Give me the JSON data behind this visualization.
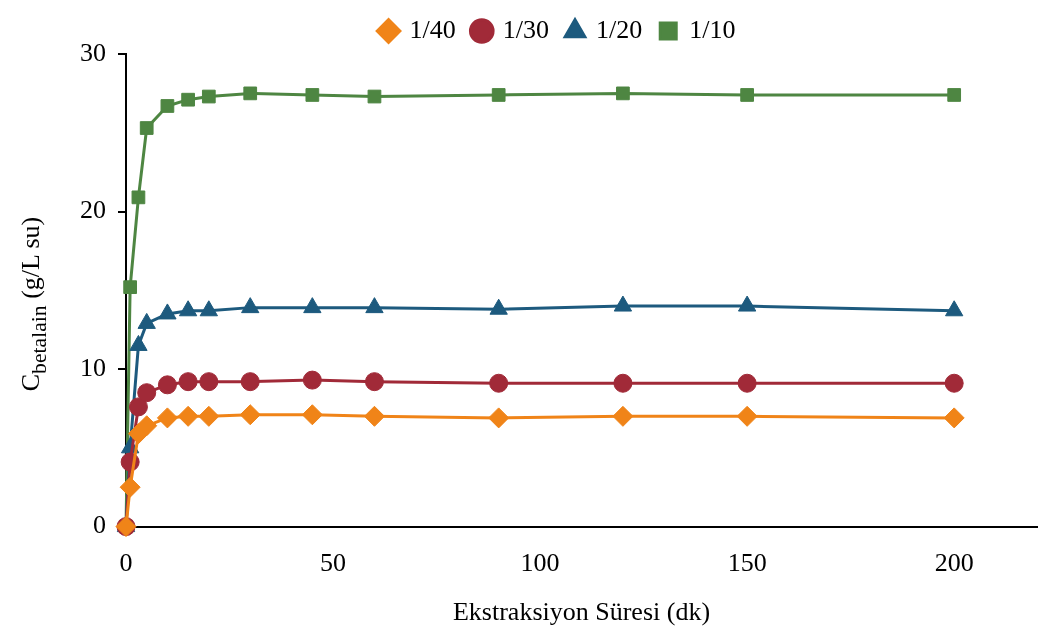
{
  "chart_data": {
    "type": "line",
    "xlabel": "Ekstraksiyon Süresi (dk)",
    "ylabel": "C$_{betalain}$ (g/L su)",
    "x": [
      0,
      1,
      3,
      5,
      10,
      15,
      20,
      30,
      45,
      60,
      90,
      120,
      150,
      200
    ],
    "series": [
      {
        "name": "1/40",
        "color": "#f08418",
        "marker": "diamond",
        "values": [
          0,
          2.5,
          5.9,
          6.4,
          6.9,
          7.0,
          7.0,
          7.1,
          7.1,
          7.0,
          6.9,
          7.0,
          7.0,
          6.9
        ]
      },
      {
        "name": "1/30",
        "color": "#a12a38",
        "marker": "circle",
        "values": [
          0,
          4.1,
          7.6,
          8.5,
          9.0,
          9.2,
          9.2,
          9.2,
          9.3,
          9.2,
          9.1,
          9.1,
          9.1,
          9.1
        ]
      },
      {
        "name": "1/20",
        "color": "#1d5a7e",
        "marker": "triangle",
        "values": [
          0,
          5.0,
          11.5,
          12.9,
          13.5,
          13.7,
          13.7,
          13.9,
          13.9,
          13.9,
          13.8,
          14.0,
          14.0,
          13.7
        ]
      },
      {
        "name": "1/10",
        "color": "#4e8642",
        "marker": "square",
        "values": [
          0,
          15.2,
          20.9,
          25.3,
          26.7,
          27.1,
          27.3,
          27.5,
          27.4,
          27.3,
          27.4,
          27.5,
          27.4,
          27.4
        ]
      }
    ],
    "xlim": [
      0,
      220
    ],
    "xticks": [
      0,
      50,
      100,
      150,
      200
    ],
    "ylim": [
      0,
      30
    ],
    "yticks": [
      0,
      10,
      20,
      30
    ],
    "grid": false,
    "legend": "top",
    "line_style": "solid"
  }
}
